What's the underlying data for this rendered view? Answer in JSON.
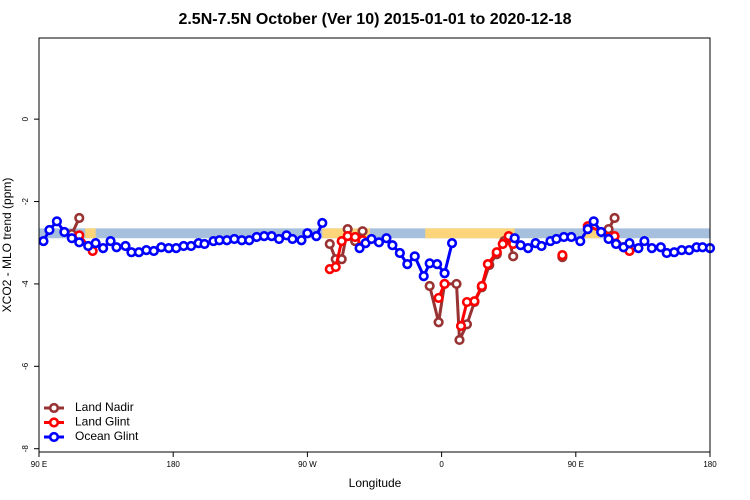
{
  "chart_data": {
    "type": "line",
    "title": "2.5N-7.5N October (Ver 10)   2015-01-01 to 2020-12-18",
    "xlabel": "Longitude",
    "ylabel": "XCO2 - MLO trend (ppm)",
    "xlim": [
      90,
      540
    ],
    "ylim": [
      -8.08,
      1.97
    ],
    "xticks": [
      {
        "value": 90,
        "label": "90 E"
      },
      180,
      {
        "value": 270,
        "label": "90 W"
      },
      {
        "value": 360,
        "label": "0"
      },
      {
        "value": 450,
        "label": "90 E"
      },
      {
        "value": 540,
        "label": "180"
      }
    ],
    "yticks": [
      0,
      -2,
      -4,
      -6,
      -8
    ],
    "legend": "bottom-left",
    "bands": [
      {
        "color": "#a5bfdd",
        "x": [
          90,
          540
        ],
        "lower": [
          -2.89,
          -2.89
        ],
        "upper": [
          -2.65,
          -2.65
        ]
      },
      {
        "color": "#fcd57a",
        "x": [
          121,
          128
        ],
        "lower": [
          -2.89,
          -2.89
        ],
        "upper": [
          -2.65,
          -2.65
        ]
      },
      {
        "color": "#fcd57a",
        "x": [
          280,
          312
        ],
        "lower": [
          -2.89,
          -2.89
        ],
        "upper": [
          -2.65,
          -2.65
        ]
      },
      {
        "color": "#fcd57a",
        "x": [
          349,
          409
        ],
        "lower": [
          -2.89,
          -2.89
        ],
        "upper": [
          -2.65,
          -2.65
        ]
      },
      {
        "color": "#fcd57a",
        "x": [
          455,
          466
        ],
        "lower": [
          -2.89,
          -2.89
        ],
        "upper": [
          -2.65,
          -2.65
        ]
      }
    ],
    "series": [
      {
        "name": "Land Nadir",
        "color": "#993333",
        "x": [
          112,
          117,
          null,
          285,
          289,
          293,
          297,
          302,
          307,
          null,
          352,
          358,
          362,
          370,
          372,
          377,
          382,
          387,
          392,
          397,
          402,
          405,
          408,
          null,
          441,
          null,
          472,
          476
        ],
        "values": [
          -2.79,
          -2.4,
          null,
          -3.03,
          -3.4,
          -3.4,
          -2.67,
          -2.96,
          -2.72,
          null,
          -4.05,
          -4.93,
          -4.0,
          -4.0,
          -5.36,
          -4.98,
          -4.44,
          -4.08,
          -3.54,
          -3.28,
          -2.96,
          -2.89,
          -3.33,
          null,
          -3.35,
          null,
          -2.67,
          -2.4
        ]
      },
      {
        "name": "Land Glint",
        "color": "#ff0000",
        "x": [
          117,
          126,
          null,
          285,
          289,
          293,
          297,
          302,
          307,
          null,
          358,
          362,
          null,
          373,
          377,
          382,
          387,
          391,
          397,
          401,
          405,
          408,
          null,
          441,
          null,
          458,
          476,
          482,
          486
        ],
        "values": [
          -2.82,
          -3.2,
          null,
          -3.64,
          -3.59,
          -2.96,
          -2.84,
          -2.86,
          -2.94,
          null,
          -4.34,
          -4.0,
          null,
          -5.02,
          -4.44,
          -4.42,
          -4.05,
          -3.52,
          -3.23,
          -3.03,
          -2.84,
          -3.03,
          null,
          -3.3,
          null,
          -2.6,
          -2.84,
          -3.11,
          -3.2
        ]
      },
      {
        "name": "Ocean Glint",
        "color": "#0000ff",
        "x": [
          93,
          97,
          102,
          107,
          112,
          117,
          123,
          128,
          133,
          138,
          142,
          148,
          152,
          157,
          162,
          167,
          172,
          177,
          182,
          187,
          192,
          197,
          201,
          207,
          211,
          216,
          221,
          226,
          231,
          236,
          241,
          246,
          251,
          256,
          260,
          266,
          270,
          276,
          280,
          null,
          305,
          309,
          313,
          318,
          323,
          327,
          332,
          337,
          342,
          348,
          352,
          357,
          362,
          367,
          null,
          409,
          413,
          418,
          423,
          427,
          433,
          437,
          442,
          447,
          453,
          458,
          462,
          467,
          472,
          477,
          482,
          486,
          492,
          496,
          501,
          507,
          511,
          516,
          521,
          526,
          531,
          535,
          540
        ],
        "values": [
          -2.96,
          -2.69,
          -2.48,
          -2.74,
          -2.89,
          -2.99,
          -3.08,
          -3.01,
          -3.13,
          -2.96,
          -3.11,
          -3.08,
          -3.23,
          -3.23,
          -3.18,
          -3.2,
          -3.11,
          -3.13,
          -3.13,
          -3.08,
          -3.08,
          -3.01,
          -3.03,
          -2.96,
          -2.94,
          -2.94,
          -2.91,
          -2.94,
          -2.94,
          -2.86,
          -2.84,
          -2.84,
          -2.91,
          -2.82,
          -2.91,
          -2.94,
          -2.77,
          -2.84,
          -2.52,
          null,
          -3.13,
          -3.01,
          -2.91,
          -2.99,
          -2.89,
          -3.06,
          -3.25,
          -3.52,
          -3.33,
          -3.81,
          -3.5,
          -3.52,
          -3.74,
          -3.01,
          null,
          -2.89,
          -3.06,
          -3.13,
          -3.01,
          -3.08,
          -2.96,
          -2.91,
          -2.86,
          -2.86,
          -2.96,
          -2.67,
          -2.48,
          -2.74,
          -2.91,
          -3.03,
          -3.11,
          -3.01,
          -3.13,
          -2.96,
          -3.13,
          -3.11,
          -3.25,
          -3.23,
          -3.18,
          -3.18,
          -3.11,
          -3.11,
          -3.13
        ]
      }
    ]
  }
}
